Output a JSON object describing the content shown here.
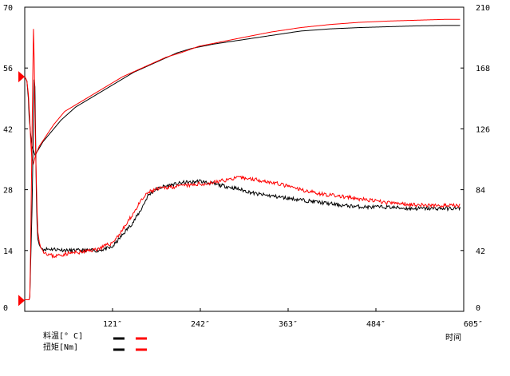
{
  "chart_data": {
    "type": "line",
    "xlabel": "时间",
    "x_ticks": [
      "121″",
      "242″",
      "363″",
      "484″",
      "605″"
    ],
    "x_tick_values": [
      121,
      242,
      363,
      484,
      605
    ],
    "xlim": [
      0,
      605
    ],
    "y_left": {
      "ticks": [
        "0",
        "14",
        "28",
        "42",
        "56",
        "70"
      ],
      "ylim": [
        0,
        70
      ]
    },
    "y_right": {
      "ticks": [
        "0",
        "42",
        "84",
        "126",
        "168",
        "210"
      ],
      "ylim": [
        0,
        210
      ]
    },
    "legend": [
      {
        "label": "料温[° C]",
        "colors": [
          "#000000",
          "#ff0000"
        ]
      },
      {
        "label": "扭矩[Nm]",
        "colors": [
          "#000000",
          "#ff0000"
        ]
      }
    ],
    "markers_left_axis": [
      54,
      2.5
    ],
    "series": [
      {
        "axis": "left",
        "color": "#000000",
        "x": [
          0,
          3,
          5,
          6,
          8,
          10,
          12,
          14,
          18,
          25,
          35,
          50,
          70,
          90,
          110,
          130,
          150,
          170,
          190,
          210,
          230,
          260,
          300,
          340,
          380,
          420,
          460,
          500,
          540,
          580,
          600
        ],
        "y": [
          54,
          53,
          49,
          45,
          41,
          38,
          37,
          36,
          37,
          39,
          41,
          44,
          47,
          49,
          51,
          53,
          55,
          56.5,
          58,
          59.5,
          60.5,
          61.5,
          62.5,
          63.5,
          64.5,
          65,
          65.3,
          65.5,
          65.7,
          65.8,
          65.8
        ]
      },
      {
        "axis": "left",
        "color": "#ff0000",
        "x": [
          0,
          3,
          5,
          6,
          7,
          8,
          9,
          10,
          12,
          15,
          20,
          28,
          40,
          55,
          75,
          95,
          115,
          135,
          155,
          175,
          195,
          215,
          240,
          270,
          300,
          340,
          380,
          420,
          460,
          500,
          540,
          580,
          600
        ],
        "y": [
          54,
          53,
          50,
          47,
          44,
          40,
          37,
          35,
          34,
          36,
          38,
          40,
          43,
          46,
          48,
          50,
          52,
          54,
          55.5,
          57,
          58.5,
          59.5,
          61,
          62,
          63,
          64.3,
          65.3,
          66,
          66.5,
          66.8,
          67,
          67.2,
          67.2
        ]
      },
      {
        "axis": "right",
        "color": "#000000",
        "x": [
          0,
          3,
          4,
          5,
          6,
          7,
          8,
          9,
          10,
          11,
          12,
          13,
          14,
          15,
          16,
          17,
          18,
          20,
          22,
          25,
          30,
          40,
          60,
          80,
          100,
          120,
          130,
          140,
          150,
          160,
          170,
          180,
          190,
          200,
          210,
          220,
          230,
          240,
          250,
          260,
          270,
          290,
          320,
          350,
          380,
          410,
          440,
          470,
          500,
          530,
          560,
          600
        ],
        "y": [
          8,
          8,
          8,
          8,
          8,
          10,
          30,
          50,
          70,
          100,
          130,
          160,
          155,
          120,
          80,
          60,
          50,
          46,
          44,
          43,
          43,
          43,
          42,
          42,
          42,
          44,
          50,
          56,
          62,
          70,
          80,
          84,
          86,
          87,
          88,
          89,
          89,
          90,
          89,
          88,
          87,
          85,
          81,
          79,
          77,
          75,
          73,
          72,
          72,
          71,
          71,
          71
        ],
        "noise": 1.3,
        "seed": 11
      },
      {
        "axis": "right",
        "color": "#ff0000",
        "x": [
          0,
          3,
          4,
          5,
          6,
          7,
          8,
          9,
          10,
          11,
          12,
          13,
          14,
          15,
          16,
          17,
          18,
          20,
          22,
          25,
          30,
          40,
          60,
          80,
          100,
          120,
          130,
          140,
          150,
          160,
          170,
          180,
          190,
          200,
          210,
          220,
          230,
          240,
          250,
          260,
          270,
          280,
          290,
          300,
          320,
          350,
          380,
          410,
          440,
          470,
          500,
          530,
          560,
          600
        ],
        "y": [
          8,
          8,
          8,
          8,
          8,
          10,
          40,
          80,
          120,
          160,
          195,
          175,
          140,
          110,
          90,
          70,
          55,
          48,
          44,
          42,
          40,
          38,
          40,
          41,
          43,
          47,
          53,
          60,
          68,
          76,
          82,
          84,
          85,
          86,
          86,
          87,
          87,
          88,
          88,
          89,
          90,
          91,
          92,
          92,
          91,
          88,
          84,
          81,
          79,
          77,
          75,
          74,
          73,
          73
        ],
        "noise": 1.3,
        "seed": 23
      }
    ]
  }
}
